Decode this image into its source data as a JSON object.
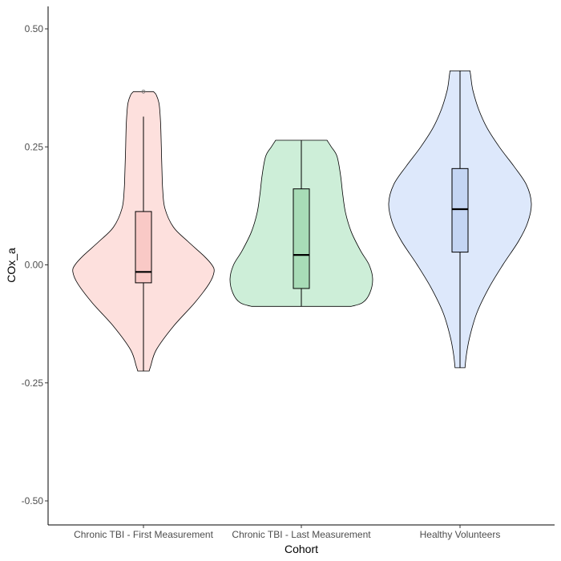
{
  "chart_data": {
    "type": "violin",
    "title": "",
    "xlabel": "Cohort",
    "ylabel": "COx_a",
    "ylim": [
      -0.55,
      0.55
    ],
    "yticks": [
      -0.5,
      -0.25,
      0.0,
      0.25,
      0.5
    ],
    "ytick_labels": [
      "-0.50",
      "-0.25",
      "0.00",
      "0.25",
      "0.50"
    ],
    "categories": [
      "Chronic TBI - First Measurement",
      "Chronic TBI - Last Measurement",
      "Healthy Volunteers"
    ],
    "grid": false,
    "legend": "none",
    "series": [
      {
        "category": "Chronic TBI - First Measurement",
        "fill": "#fde0dd",
        "box_fill": "#f9c9c6",
        "box": {
          "whisker_low": -0.225,
          "q1": -0.038,
          "median": -0.015,
          "q3": 0.113,
          "whisker_high": 0.314
        },
        "outliers": [
          0.367
        ],
        "violin_range": [
          -0.225,
          0.367
        ],
        "density_profile": [
          [
            -0.225,
            0.08
          ],
          [
            -0.215,
            0.1
          ],
          [
            -0.18,
            0.18
          ],
          [
            -0.13,
            0.42
          ],
          [
            -0.08,
            0.72
          ],
          [
            -0.04,
            0.92
          ],
          [
            -0.015,
            0.99
          ],
          [
            0.0,
            0.96
          ],
          [
            0.02,
            0.84
          ],
          [
            0.05,
            0.62
          ],
          [
            0.08,
            0.42
          ],
          [
            0.12,
            0.3
          ],
          [
            0.16,
            0.27
          ],
          [
            0.2,
            0.26
          ],
          [
            0.25,
            0.25
          ],
          [
            0.3,
            0.24
          ],
          [
            0.34,
            0.22
          ],
          [
            0.36,
            0.18
          ],
          [
            0.367,
            0.14
          ]
        ]
      },
      {
        "category": "Chronic TBI - Last Measurement",
        "fill": "#cdeed8",
        "box_fill": "#a8dcb7",
        "box": {
          "whisker_low": -0.088,
          "q1": -0.05,
          "median": 0.021,
          "q3": 0.161,
          "whisker_high": 0.264
        },
        "outliers": [],
        "violin_range": [
          -0.088,
          0.264
        ],
        "density_profile": [
          [
            -0.088,
            0.7
          ],
          [
            -0.08,
            0.86
          ],
          [
            -0.06,
            0.96
          ],
          [
            -0.03,
            1.0
          ],
          [
            0.0,
            0.95
          ],
          [
            0.03,
            0.83
          ],
          [
            0.07,
            0.7
          ],
          [
            0.11,
            0.62
          ],
          [
            0.15,
            0.58
          ],
          [
            0.19,
            0.55
          ],
          [
            0.23,
            0.5
          ],
          [
            0.25,
            0.42
          ],
          [
            0.264,
            0.36
          ]
        ]
      },
      {
        "category": "Healthy Volunteers",
        "fill": "#dde8fb",
        "box_fill": "#c4d5f3",
        "box": {
          "whisker_low": -0.218,
          "q1": 0.027,
          "median": 0.118,
          "q3": 0.204,
          "whisker_high": 0.411
        },
        "outliers": [],
        "violin_range": [
          -0.218,
          0.411
        ],
        "density_profile": [
          [
            -0.218,
            0.07
          ],
          [
            -0.19,
            0.09
          ],
          [
            -0.15,
            0.14
          ],
          [
            -0.1,
            0.24
          ],
          [
            -0.05,
            0.4
          ],
          [
            0.0,
            0.6
          ],
          [
            0.05,
            0.82
          ],
          [
            0.09,
            0.95
          ],
          [
            0.13,
            1.0
          ],
          [
            0.17,
            0.93
          ],
          [
            0.21,
            0.75
          ],
          [
            0.25,
            0.55
          ],
          [
            0.29,
            0.38
          ],
          [
            0.33,
            0.26
          ],
          [
            0.37,
            0.18
          ],
          [
            0.4,
            0.15
          ],
          [
            0.411,
            0.14
          ]
        ]
      }
    ]
  }
}
